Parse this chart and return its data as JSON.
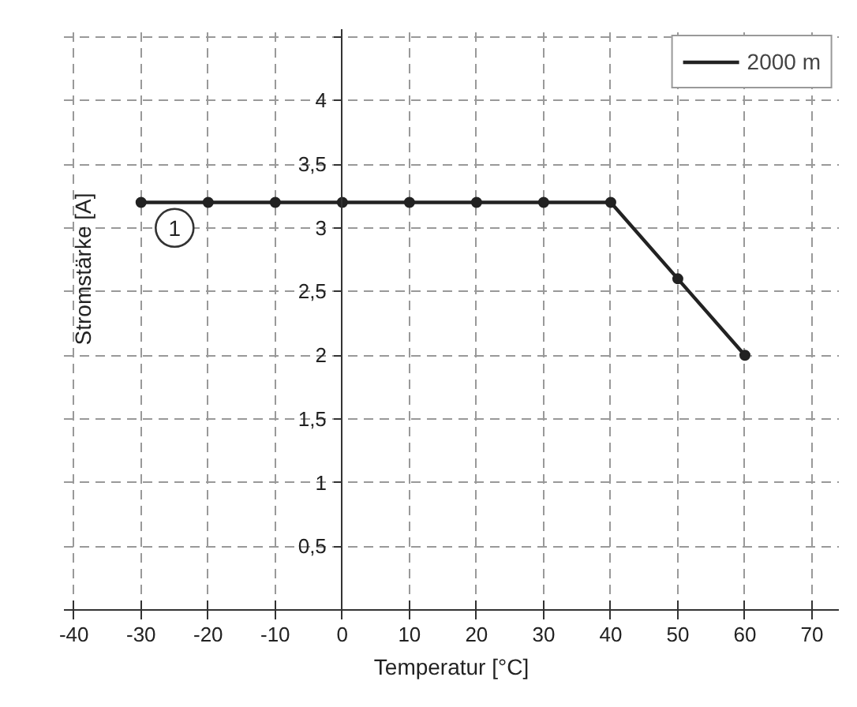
{
  "chart_data": {
    "type": "line",
    "xlabel": "Temperatur [°C]",
    "ylabel": "Stromstärke [A]",
    "x": [
      -30,
      -20,
      -10,
      0,
      10,
      20,
      30,
      40,
      50,
      60
    ],
    "series": [
      {
        "name": "2000 m",
        "color": "#222222",
        "values": [
          3.2,
          3.2,
          3.2,
          3.2,
          3.2,
          3.2,
          3.2,
          3.2,
          2.6,
          2.0
        ]
      }
    ],
    "xlim": [
      -41.5,
      74
    ],
    "ylim": [
      0,
      4.56
    ],
    "xticks": [
      -40,
      -30,
      -20,
      -10,
      0,
      10,
      20,
      30,
      40,
      50,
      60,
      70
    ],
    "yticks": [
      {
        "value": 0.5,
        "label": "0,5"
      },
      1,
      {
        "value": 1.5,
        "label": "1,5"
      },
      2,
      {
        "value": 2.5,
        "label": "2,5"
      },
      3,
      {
        "value": 3.5,
        "label": "3,5"
      },
      4,
      {
        "value": 4.5,
        "label": null
      }
    ],
    "annotations": [
      {
        "text": "1",
        "x": -25,
        "y": 3.0
      }
    ],
    "grid": true,
    "legend": "top right",
    "marker": "circle",
    "line_style": "solid"
  }
}
